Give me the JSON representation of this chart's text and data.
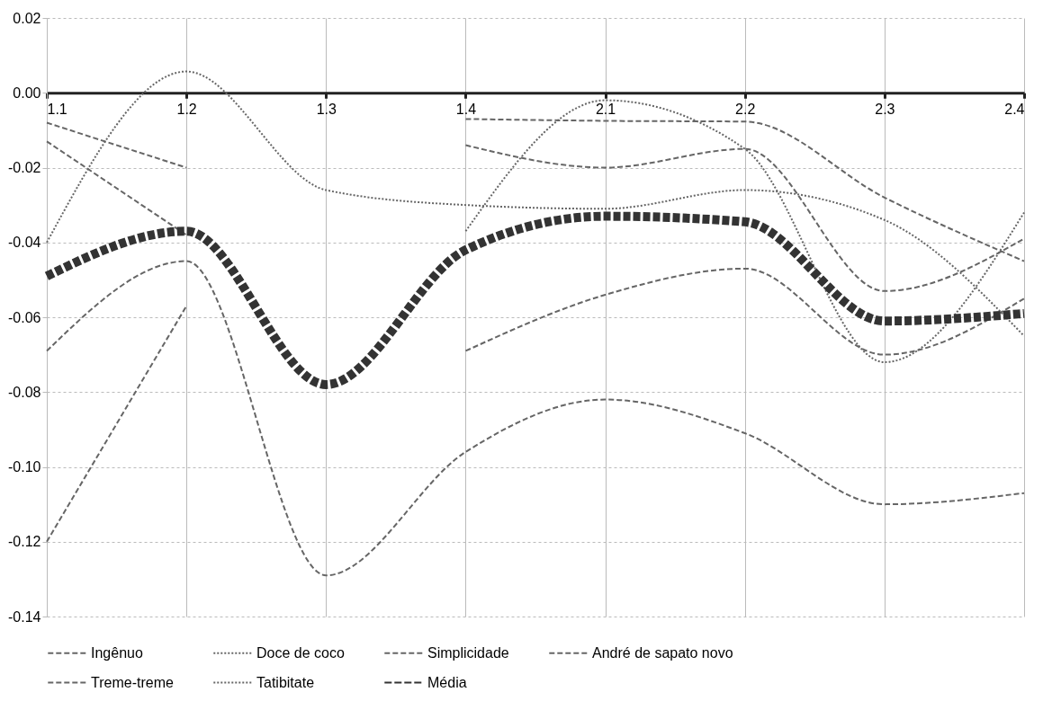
{
  "chart_data": {
    "type": "line",
    "categories": [
      "1.1",
      "1.2",
      "1.3",
      "1.4",
      "2.1",
      "2.2",
      "2.3",
      "2.4"
    ],
    "series": [
      {
        "name": "Ingênuo",
        "color": "#666666",
        "line_style": "dashed",
        "values": [
          -0.12,
          -0.057,
          null,
          -0.007,
          -0.0075,
          -0.0077,
          -0.028,
          -0.045
        ]
      },
      {
        "name": "Doce de coco",
        "color": "#666666",
        "line_style": "dotted",
        "values": [
          null,
          null,
          null,
          -0.037,
          -0.002,
          -0.015,
          -0.072,
          -0.032
        ]
      },
      {
        "name": "Simplicidade",
        "color": "#666666",
        "line_style": "dashed",
        "values": [
          -0.069,
          -0.045,
          -0.129,
          -0.096,
          -0.082,
          -0.091,
          -0.11,
          -0.107
        ]
      },
      {
        "name": "André de sapato novo",
        "color": "#666666",
        "line_style": "dashed",
        "values": [
          -0.013,
          -0.038,
          null,
          -0.069,
          -0.054,
          -0.047,
          -0.07,
          -0.055
        ]
      },
      {
        "name": "Treme-treme",
        "color": "#666666",
        "line_style": "dashed",
        "values": [
          -0.008,
          -0.02,
          null,
          -0.014,
          -0.02,
          -0.015,
          -0.053,
          -0.039
        ]
      },
      {
        "name": "Tatibitate",
        "color": "#666666",
        "line_style": "dotted",
        "values": [
          -0.04,
          0.0057,
          -0.026,
          -0.03,
          -0.031,
          -0.026,
          -0.034,
          -0.065
        ]
      },
      {
        "name": "Média",
        "color": "#333333",
        "line_style": "dotted",
        "values": [
          -0.049,
          -0.037,
          -0.078,
          -0.042,
          -0.033,
          -0.0345,
          -0.061,
          -0.059
        ]
      }
    ],
    "ylim": [
      -0.14,
      0.02
    ],
    "yticks": [
      -0.14,
      -0.12,
      {
        "value": -0.1,
        "label": "-0.10"
      },
      -0.08,
      -0.06,
      -0.04,
      -0.02,
      {
        "value": 0,
        "label": "0.00"
      },
      0.02
    ],
    "grid": true,
    "legend": "bottom",
    "marker": "none"
  }
}
